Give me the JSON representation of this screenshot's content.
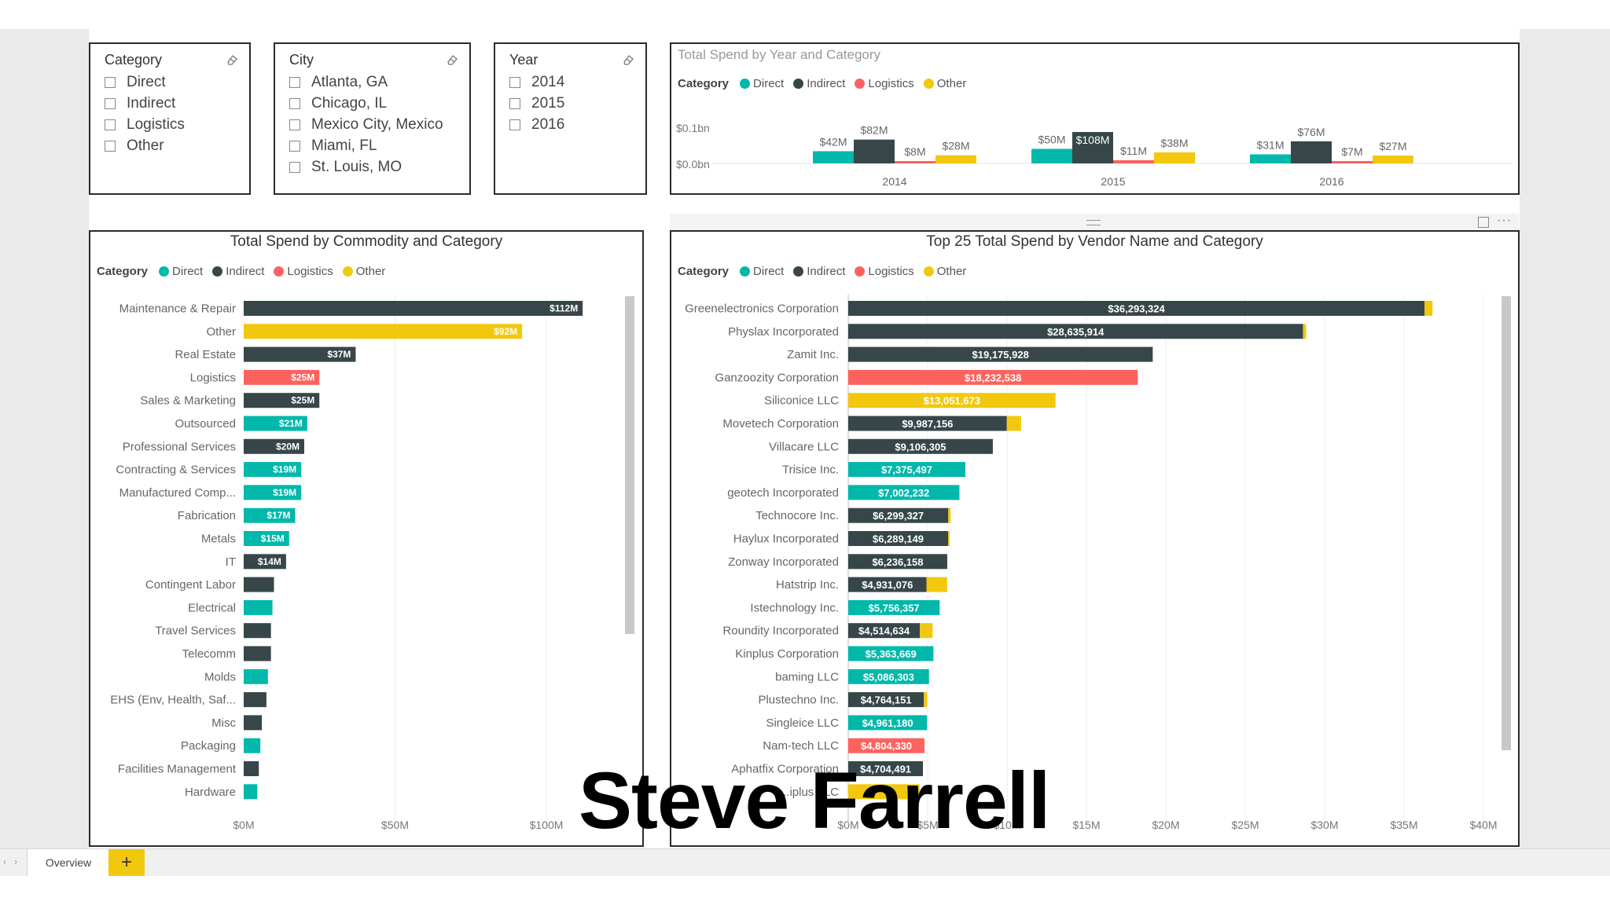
{
  "colors": {
    "direct": "#01b8aa",
    "indirect": "#374649",
    "logistics": "#fd625e",
    "other": "#f2c80f"
  },
  "slicers": [
    {
      "title": "Category",
      "items": [
        "Direct",
        "Indirect",
        "Logistics",
        "Other"
      ]
    },
    {
      "title": "City",
      "items": [
        "Atlanta, GA",
        "Chicago, IL",
        "Mexico City, Mexico",
        "Miami, FL",
        "St. Louis, MO"
      ]
    },
    {
      "title": "Year",
      "items": [
        "2014",
        "2015",
        "2016"
      ]
    }
  ],
  "legend": {
    "label": "Category",
    "items": [
      "Direct",
      "Indirect",
      "Logistics",
      "Other"
    ]
  },
  "year_chart": {
    "title": "Total Spend by Year and Category",
    "y_ticks": [
      "$0.1bn",
      "$0.0bn"
    ],
    "years": [
      {
        "label": "2014",
        "values": [
          42,
          82,
          8,
          28
        ],
        "labels": [
          "$42M",
          "$82M",
          "$8M",
          "$28M"
        ]
      },
      {
        "label": "2015",
        "values": [
          50,
          108,
          11,
          38
        ],
        "labels": [
          "$50M",
          "$108M",
          "$11M",
          "$38M"
        ]
      },
      {
        "label": "2016",
        "values": [
          31,
          76,
          7,
          27
        ],
        "labels": [
          "$31M",
          "$76M",
          "$7M",
          "$27M"
        ]
      }
    ]
  },
  "commodity_chart": {
    "title": "Total Spend by Commodity and Category",
    "x_ticks": [
      "$0M",
      "$50M",
      "$100M"
    ],
    "rows": [
      {
        "name": "Maintenance & Repair",
        "cat": "indirect",
        "value": 112,
        "label": "$112M"
      },
      {
        "name": "Other",
        "cat": "other",
        "value": 92,
        "label": "$92M"
      },
      {
        "name": "Real Estate",
        "cat": "indirect",
        "value": 37,
        "label": "$37M"
      },
      {
        "name": "Logistics",
        "cat": "logistics",
        "value": 25,
        "label": "$25M"
      },
      {
        "name": "Sales & Marketing",
        "cat": "indirect",
        "value": 25,
        "label": "$25M"
      },
      {
        "name": "Outsourced",
        "cat": "direct",
        "value": 21,
        "label": "$21M"
      },
      {
        "name": "Professional Services",
        "cat": "indirect",
        "value": 20,
        "label": "$20M"
      },
      {
        "name": "Contracting & Services",
        "cat": "direct",
        "value": 19,
        "label": "$19M"
      },
      {
        "name": "Manufactured Comp...",
        "cat": "direct",
        "value": 19,
        "label": "$19M"
      },
      {
        "name": "Fabrication",
        "cat": "direct",
        "value": 17,
        "label": "$17M"
      },
      {
        "name": "Metals",
        "cat": "direct",
        "value": 15,
        "label": "$15M"
      },
      {
        "name": "IT",
        "cat": "indirect",
        "value": 14,
        "label": "$14M"
      },
      {
        "name": "Contingent Labor",
        "cat": "indirect",
        "value": 10,
        "label": ""
      },
      {
        "name": "Electrical",
        "cat": "direct",
        "value": 9.5,
        "label": ""
      },
      {
        "name": "Travel Services",
        "cat": "indirect",
        "value": 9,
        "label": ""
      },
      {
        "name": "Telecomm",
        "cat": "indirect",
        "value": 9,
        "label": ""
      },
      {
        "name": "Molds",
        "cat": "direct",
        "value": 8,
        "label": ""
      },
      {
        "name": "EHS (Env, Health, Saf...",
        "cat": "indirect",
        "value": 7.5,
        "label": ""
      },
      {
        "name": "Misc",
        "cat": "indirect",
        "value": 6,
        "label": ""
      },
      {
        "name": "Packaging",
        "cat": "direct",
        "value": 5.5,
        "label": ""
      },
      {
        "name": "Facilities Management",
        "cat": "indirect",
        "value": 5,
        "label": ""
      },
      {
        "name": "Hardware",
        "cat": "direct",
        "value": 4.5,
        "label": ""
      }
    ]
  },
  "vendor_chart": {
    "title": "Top 25 Total Spend by Vendor Name and Category",
    "x_ticks": [
      "$0M",
      "$5M",
      "$10M",
      "$15M",
      "$20M",
      "$25M",
      "$30M",
      "$35M",
      "$40M"
    ],
    "rows": [
      {
        "name": "Greenelectronics Corporation",
        "cat": "indirect",
        "value": 36.293,
        "label": "$36,293,324",
        "tail": "other",
        "tail_value": 0.5
      },
      {
        "name": "Physlax Incorporated",
        "cat": "indirect",
        "value": 28.636,
        "label": "$28,635,914",
        "tail": "other",
        "tail_value": 0.2
      },
      {
        "name": "Zamit Inc.",
        "cat": "indirect",
        "value": 19.176,
        "label": "$19,175,928"
      },
      {
        "name": "Ganzoozity Corporation",
        "cat": "logistics",
        "value": 18.233,
        "label": "$18,232,538"
      },
      {
        "name": "Siliconice LLC",
        "cat": "other",
        "value": 13.052,
        "label": "$13,051,673"
      },
      {
        "name": "Movetech Corporation",
        "cat": "indirect",
        "value": 9.987,
        "label": "$9,987,156",
        "tail": "other",
        "tail_value": 0.9
      },
      {
        "name": "Villacare LLC",
        "cat": "indirect",
        "value": 9.106,
        "label": "$9,106,305"
      },
      {
        "name": "Trisice Inc.",
        "cat": "direct",
        "value": 7.375,
        "label": "$7,375,497"
      },
      {
        "name": "geotech Incorporated",
        "cat": "direct",
        "value": 7.002,
        "label": "$7,002,232"
      },
      {
        "name": "Technocore Inc.",
        "cat": "indirect",
        "value": 6.299,
        "label": "$6,299,327",
        "tail": "other",
        "tail_value": 0.15
      },
      {
        "name": "Haylux Incorporated",
        "cat": "indirect",
        "value": 6.289,
        "label": "$6,289,149",
        "tail": "other",
        "tail_value": 0.1
      },
      {
        "name": "Zonway Incorporated",
        "cat": "indirect",
        "value": 6.236,
        "label": "$6,236,158"
      },
      {
        "name": "Hatstrip Inc.",
        "cat": "indirect",
        "value": 4.931,
        "label": "$4,931,076",
        "tail": "other",
        "tail_value": 1.3
      },
      {
        "name": "Istechnology Inc.",
        "cat": "direct",
        "value": 5.756,
        "label": "$5,756,357"
      },
      {
        "name": "Roundity Incorporated",
        "cat": "indirect",
        "value": 4.515,
        "label": "$4,514,634",
        "tail": "other",
        "tail_value": 0.8
      },
      {
        "name": "Kinplus Corporation",
        "cat": "direct",
        "value": 5.364,
        "label": "$5,363,669"
      },
      {
        "name": "baming LLC",
        "cat": "direct",
        "value": 5.086,
        "label": "$5,086,303"
      },
      {
        "name": "Plustechno Inc.",
        "cat": "indirect",
        "value": 4.764,
        "label": "$4,764,151",
        "tail": "other",
        "tail_value": 0.2
      },
      {
        "name": "Singleice LLC",
        "cat": "direct",
        "value": 4.961,
        "label": "$4,961,180"
      },
      {
        "name": "Nam-tech LLC",
        "cat": "logistics",
        "value": 4.804,
        "label": "$4,804,330"
      },
      {
        "name": "Aphatfix Corporation",
        "cat": "indirect",
        "value": 4.704,
        "label": "$4,704,491"
      },
      {
        "name": "...iplus LLC",
        "cat": "other",
        "value": 4.5,
        "label": ""
      }
    ]
  },
  "bottom": {
    "tab": "Overview",
    "add": "+"
  },
  "watermark": "Steve Farrell"
}
